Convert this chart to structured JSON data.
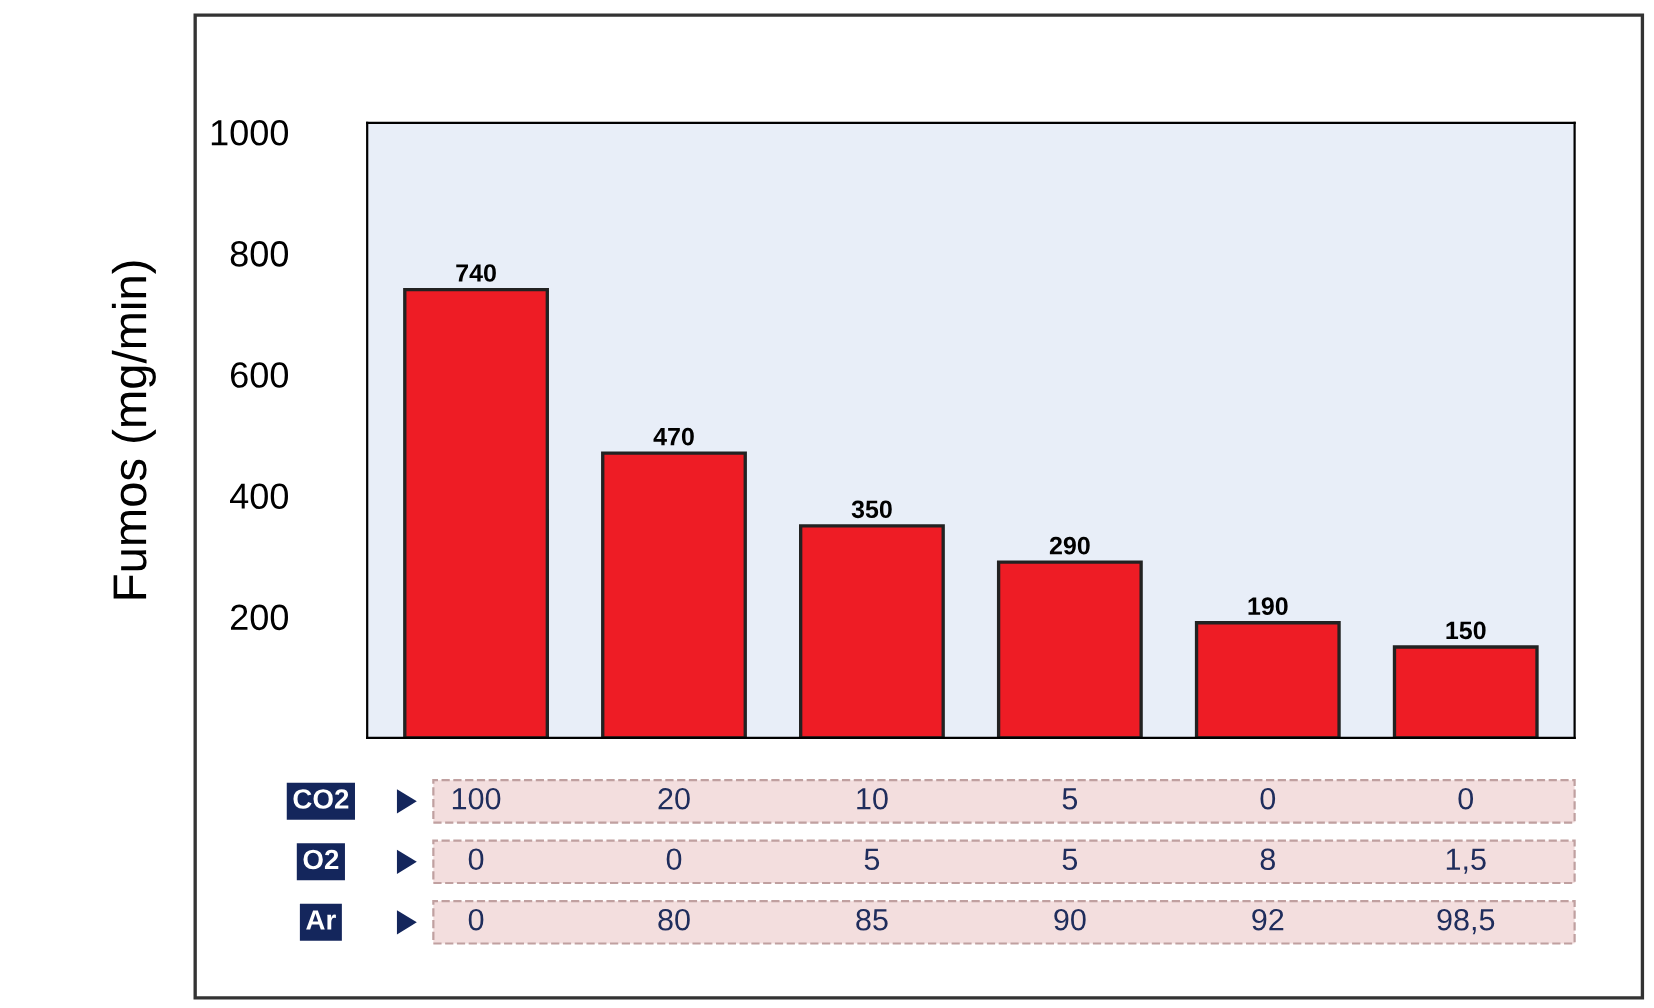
{
  "chart_data": {
    "type": "bar",
    "ylabel": "Fumos (mg/min)",
    "categories": [
      null,
      null,
      null,
      null,
      null,
      null
    ],
    "values": [
      740,
      470,
      350,
      290,
      190,
      150
    ],
    "color": "#ee1c25",
    "ylim": [
      0,
      1015
    ],
    "yticks": [
      200,
      400,
      600,
      800,
      1000
    ],
    "grid": false,
    "data_labels": true,
    "annotations": [
      "CO2",
      "100",
      "20",
      "10",
      "5",
      "0",
      "0",
      "O2",
      "0",
      "0",
      "5",
      "5",
      "8",
      "1,5",
      "Ar",
      "0",
      "80",
      "85",
      "90",
      "92",
      "98,5"
    ]
  }
}
